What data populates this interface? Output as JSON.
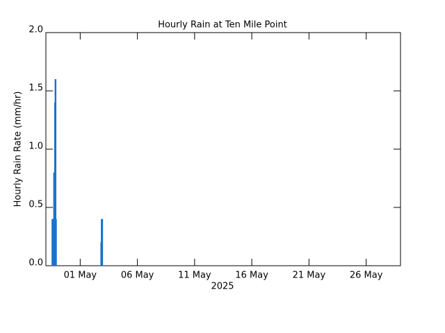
{
  "chart_data": {
    "type": "bar",
    "title": "Hourly Rain at Ten Mile Point",
    "xlabel": "2025",
    "ylabel": "Hourly Rain Rate (mm/hr)",
    "x": [
      0.55,
      0.58,
      0.62,
      0.66,
      0.7,
      0.74,
      0.78,
      0.82,
      0.86,
      0.9,
      4.82,
      4.86,
      4.9,
      4.94
    ],
    "values": [
      0.4,
      0.4,
      0.4,
      0.4,
      0.8,
      0.4,
      1.4,
      1.6,
      1.6,
      0.4,
      0.2,
      0.4,
      0.4,
      0.4
    ],
    "color": "#1874cd",
    "xlim": [
      0,
      31
    ],
    "xticks": [
      {
        "value": 3,
        "label": "01 May"
      },
      {
        "value": 8,
        "label": "06 May"
      },
      {
        "value": 13,
        "label": "11 May"
      },
      {
        "value": 18,
        "label": "16 May"
      },
      {
        "value": 23,
        "label": "21 May"
      },
      {
        "value": 28,
        "label": "26 May"
      }
    ],
    "ylim": [
      0,
      2
    ],
    "yticks": [
      {
        "value": 0,
        "label": "0.0"
      },
      {
        "value": 0.5,
        "label": "0.5"
      },
      {
        "value": 1,
        "label": "1.0"
      },
      {
        "value": 1.5,
        "label": "1.5"
      },
      {
        "value": 2,
        "label": "2.0"
      }
    ]
  }
}
